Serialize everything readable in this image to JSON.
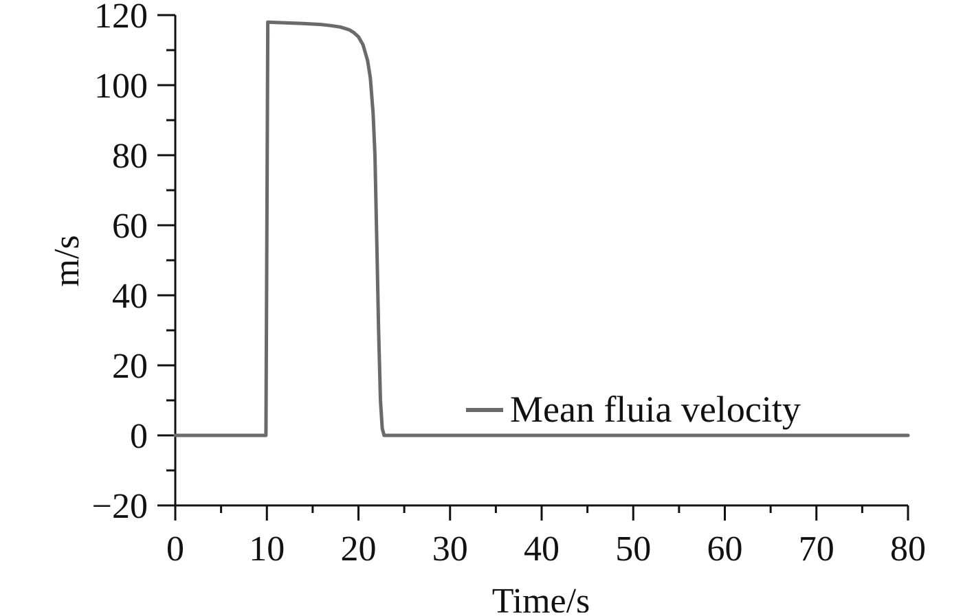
{
  "chart_data": {
    "type": "line",
    "xlabel": "Time/s",
    "ylabel": "m/s",
    "xlim": [
      0,
      80
    ],
    "ylim": [
      -20,
      120
    ],
    "x_ticks": [
      0,
      10,
      20,
      30,
      40,
      50,
      60,
      70,
      80
    ],
    "x_tick_labels": [
      "0",
      "10",
      "20",
      "30",
      "40",
      "50",
      "60",
      "70",
      "80"
    ],
    "y_ticks": [
      -20,
      0,
      20,
      40,
      60,
      80,
      100,
      120
    ],
    "y_tick_labels": [
      "−20",
      "0",
      "20",
      "40",
      "60",
      "80",
      "100",
      "120"
    ],
    "x_minor_step": 5,
    "y_minor_step": 10,
    "grid": false,
    "legend_position": "lower-right",
    "series": [
      {
        "name": "Mean fluia velocity",
        "color": "#6a6a6a",
        "x": [
          0,
          9.9,
          10.0,
          10.1,
          12,
          14,
          16,
          17,
          18,
          19,
          19.5,
          20,
          20.5,
          21,
          21.3,
          21.6,
          21.8,
          22.0,
          22.2,
          22.4,
          22.6,
          22.8,
          23.0,
          30,
          40,
          50,
          60,
          70,
          80
        ],
        "y": [
          0,
          0,
          60,
          118,
          117.8,
          117.6,
          117.3,
          117.0,
          116.6,
          115.8,
          115.0,
          113.8,
          111.5,
          107,
          102,
          92,
          80,
          55,
          30,
          10,
          2,
          0,
          0,
          0,
          0,
          0,
          0,
          0,
          0
        ]
      }
    ]
  }
}
